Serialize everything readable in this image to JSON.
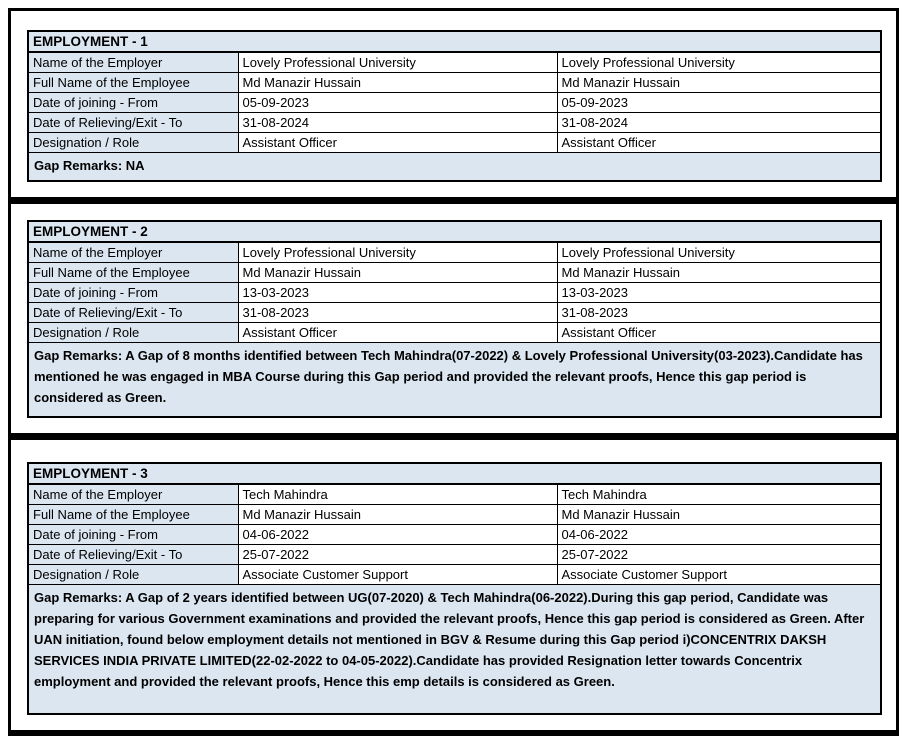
{
  "document": {
    "fill_color": "#dce6f1",
    "border_color": "#000000",
    "text_color": "#000000"
  },
  "row_labels": {
    "employer": "Name of the Employer",
    "employee": "Full Name of the Employee",
    "joining": "Date of joining - From",
    "relieving": "Date of Relieving/Exit - To",
    "designation": "Designation / Role"
  },
  "employments": [
    {
      "title": "EMPLOYMENT - 1",
      "employer": "Lovely Professional University",
      "employee": "Md Manazir Hussain",
      "joining": "05-09-2023",
      "relieving": "31-08-2024",
      "designation": "Assistant Officer",
      "gap_remarks": "Gap Remarks: NA"
    },
    {
      "title": "EMPLOYMENT - 2",
      "employer": "Lovely Professional University",
      "employee": "Md Manazir Hussain",
      "joining": "13-03-2023",
      "relieving": "31-08-2023",
      "designation": "Assistant Officer",
      "gap_remarks": "Gap Remarks: A Gap of 8 months identified between Tech Mahindra(07-2022) & Lovely Professional University(03-2023).Candidate has mentioned he was engaged in MBA Course during this Gap period and provided the relevant proofs, Hence this gap period is considered as Green."
    },
    {
      "title": "EMPLOYMENT - 3",
      "employer": "Tech Mahindra",
      "employee": "Md Manazir Hussain",
      "joining": "04-06-2022",
      "relieving": "25-07-2022",
      "designation": "Associate Customer Support",
      "gap_remarks": "Gap Remarks: A Gap of 2 years identified between UG(07-2020) & Tech Mahindra(06-2022).During this gap period, Candidate was preparing for various Government examinations and provided the relevant proofs, Hence this gap period is considered as Green. After UAN initiation, found below employment details not mentioned in BGV & Resume during this Gap period i)CONCENTRIX DAKSH SERVICES INDIA PRIVATE LIMITED(22-02-2022 to 04-05-2022).Candidate has provided Resignation letter towards Concentrix employment and provided the relevant proofs, Hence this emp details is considered as Green."
    }
  ]
}
